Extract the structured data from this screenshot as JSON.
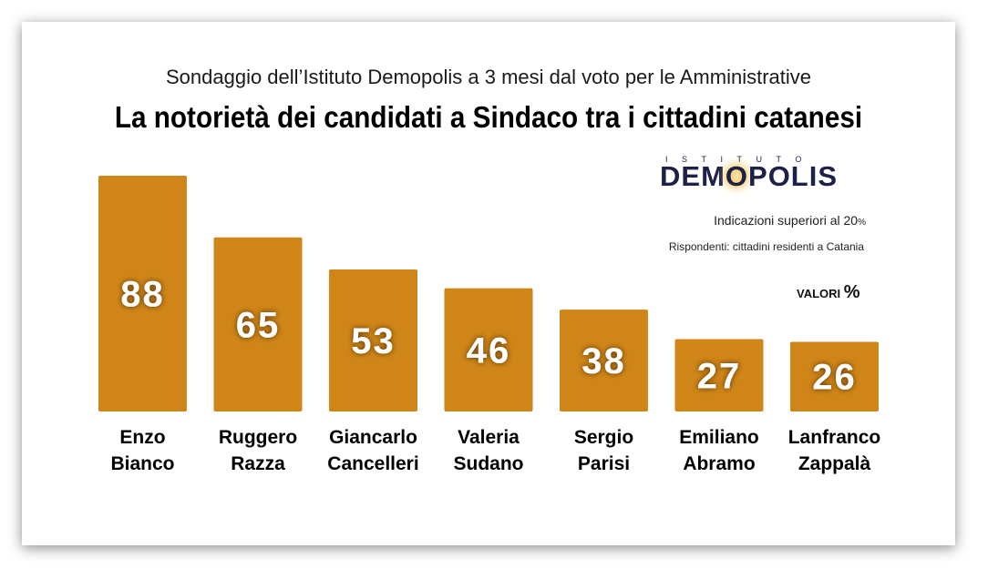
{
  "header": {
    "subtitle": "Sondaggio dell’Istituto Demopolis a 3 mesi dal voto per le Amministrative",
    "title": "La notorietà dei candidati a Sindaco tra i cittadini catanesi"
  },
  "logo": {
    "top_text": "ISTITUTO",
    "main_before": "DEM",
    "main_o": "O",
    "main_after": "POLIS"
  },
  "notes": {
    "indications": "Indicazioni superiori al 20",
    "indications_pct": "%",
    "respondents": "Rispondenti: cittadini residenti a Catania",
    "units": "VALORI",
    "units_pct": "%"
  },
  "colors": {
    "bar": "#cf8517",
    "label_text": "#ffffff"
  },
  "chart_data": {
    "type": "bar",
    "title": "La notorietà dei candidati a Sindaco tra i cittadini catanesi",
    "xlabel": "",
    "ylabel": "",
    "ylim": [
      0,
      88
    ],
    "categories": [
      [
        "Enzo",
        "Bianco"
      ],
      [
        "Ruggero",
        "Razza"
      ],
      [
        "Giancarlo",
        "Cancelleri"
      ],
      [
        "Valeria",
        "Sudano"
      ],
      [
        "Sergio",
        "Parisi"
      ],
      [
        "Emiliano",
        "Abramo"
      ],
      [
        "Lanfranco",
        "Zappalà"
      ]
    ],
    "values": [
      88,
      65,
      53,
      46,
      38,
      27,
      26
    ]
  }
}
